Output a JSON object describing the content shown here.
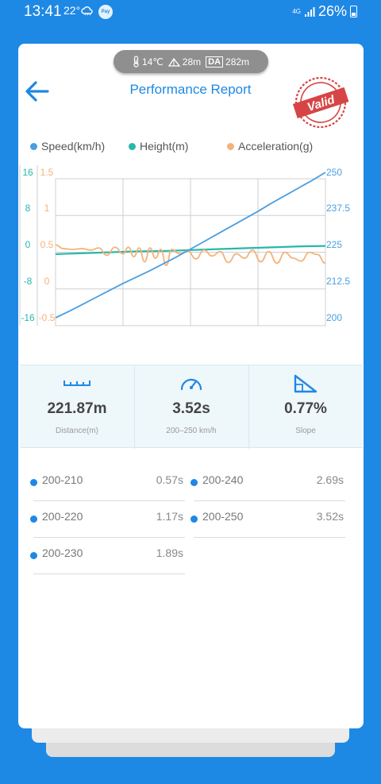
{
  "status_bar": {
    "time": "13:41",
    "temperature": "22°",
    "pay_badge": "Pay",
    "network": "4G",
    "battery": "26%"
  },
  "info_pill": {
    "temperature": "14℃",
    "elevation": "28m",
    "da_label": "DA",
    "density_altitude": "282m"
  },
  "header": {
    "title": "Performance Report",
    "stamp_text": "Valid"
  },
  "legend": [
    {
      "label": "Speed(km/h)",
      "color": "#4a9ee0"
    },
    {
      "label": "Height(m)",
      "color": "#26b8ac"
    },
    {
      "label": "Acceleration(g)",
      "color": "#f5b27a"
    }
  ],
  "chart_data": {
    "type": "line",
    "axes": {
      "height_ticks": [
        "16",
        "8",
        "0",
        "-8",
        "-16"
      ],
      "height_range": [
        -16,
        16
      ],
      "accel_ticks": [
        "1.5",
        "1",
        "0.5",
        "0",
        "-0.5"
      ],
      "accel_range": [
        -0.5,
        1.5
      ],
      "speed_ticks": [
        "250",
        "237.5",
        "225",
        "212.5",
        "200"
      ],
      "speed_range": [
        200,
        250
      ]
    },
    "grid": true,
    "series": [
      {
        "name": "Speed(km/h)",
        "axis": "speed",
        "color": "#4a9ee0",
        "x": [
          0,
          0.05,
          0.1,
          0.15,
          0.2,
          0.25,
          0.3,
          0.35,
          0.4,
          0.45,
          0.5,
          0.55,
          0.6,
          0.65,
          0.7,
          0.75,
          0.8,
          0.85,
          0.9,
          0.95,
          1.0
        ],
        "values": [
          200,
          202.2,
          204.6,
          207.0,
          209.4,
          211.8,
          214.0,
          216.2,
          218.6,
          221.0,
          223.6,
          226.2,
          228.8,
          231.4,
          234.0,
          236.6,
          239.4,
          242.0,
          244.6,
          247.2,
          250
        ]
      },
      {
        "name": "Height(m)",
        "axis": "height",
        "color": "#26b8ac",
        "x": [
          0,
          0.1,
          0.2,
          0.3,
          0.4,
          0.5,
          0.6,
          0.7,
          0.8,
          0.9,
          1.0
        ],
        "values": [
          -2.0,
          -1.8,
          -1.6,
          -1.4,
          -1.3,
          -1.1,
          -0.9,
          -0.7,
          -0.5,
          -0.3,
          -0.2
        ]
      },
      {
        "name": "Acceleration(g)",
        "axis": "accel",
        "color": "#f5b27a",
        "x": [
          0,
          0.03,
          0.06,
          0.1,
          0.13,
          0.16,
          0.19,
          0.22,
          0.25,
          0.27,
          0.29,
          0.31,
          0.33,
          0.35,
          0.37,
          0.39,
          0.41,
          0.43,
          0.46,
          0.49,
          0.52,
          0.55,
          0.58,
          0.61,
          0.64,
          0.67,
          0.7,
          0.73,
          0.76,
          0.79,
          0.82,
          0.85,
          0.88,
          0.91,
          0.94,
          0.97,
          1.0
        ],
        "values": [
          0.5,
          0.45,
          0.44,
          0.45,
          0.43,
          0.46,
          0.36,
          0.47,
          0.38,
          0.47,
          0.34,
          0.46,
          0.27,
          0.46,
          0.32,
          0.44,
          0.22,
          0.44,
          0.38,
          0.42,
          0.31,
          0.43,
          0.35,
          0.41,
          0.26,
          0.38,
          0.32,
          0.43,
          0.27,
          0.41,
          0.25,
          0.4,
          0.32,
          0.28,
          0.4,
          0.37,
          0.25
        ]
      }
    ]
  },
  "stats": [
    {
      "icon": "ruler-icon",
      "value": "221.87m",
      "label": "Distance(m)"
    },
    {
      "icon": "speedometer-icon",
      "value": "3.52s",
      "label": "200–250 km/h"
    },
    {
      "icon": "slope-icon",
      "value": "0.77%",
      "label": "Slope"
    }
  ],
  "splits": [
    {
      "range": "200-210",
      "time": "0.57s"
    },
    {
      "range": "200-240",
      "time": "2.69s"
    },
    {
      "range": "200-220",
      "time": "1.17s"
    },
    {
      "range": "200-250",
      "time": "3.52s"
    },
    {
      "range": "200-230",
      "time": "1.89s"
    }
  ],
  "colors": {
    "brand_blue": "#1e88e5",
    "speed": "#4a9ee0",
    "height": "#26b8ac",
    "acceleration": "#f5b27a"
  }
}
